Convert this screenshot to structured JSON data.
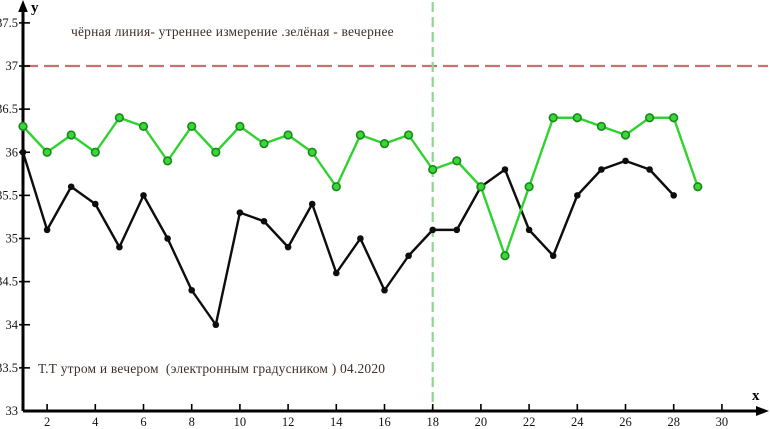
{
  "chart_data": {
    "type": "line",
    "legend_text": "чёрная линия- утреннее измерение .зелёная - вечернее",
    "caption_text": "Т.Т утром и вечером  (электронным градусником ) 04.2020",
    "x_axis_label": "x",
    "y_axis_label": "y",
    "xlim": [
      1,
      31
    ],
    "ylim": [
      33,
      37.8
    ],
    "grid": false,
    "legend_position": "none",
    "x_ticks": [
      2,
      4,
      6,
      8,
      10,
      12,
      14,
      16,
      18,
      20,
      22,
      24,
      26,
      28,
      30
    ],
    "y_ticks": [
      "37.5",
      "37",
      "36.5",
      "36",
      "35.5",
      "35",
      "34.5",
      "34",
      "33.5",
      "33"
    ],
    "series": [
      {
        "name": "утреннее измерение (чёрная линия)",
        "key": "morning",
        "color": "#0d0d0d",
        "marker_fill": "#0d0d0d",
        "marker_stroke": "#0d0d0d",
        "x": [
          1,
          2,
          3,
          4,
          5,
          6,
          7,
          8,
          9,
          10,
          11,
          12,
          13,
          14,
          15,
          16,
          17,
          18,
          19,
          20,
          21,
          22,
          23,
          24,
          25,
          26,
          27,
          28
        ],
        "values": [
          36.0,
          35.1,
          35.6,
          35.4,
          34.9,
          35.5,
          35.0,
          34.4,
          34.0,
          35.3,
          35.2,
          34.9,
          35.4,
          34.6,
          35.0,
          34.4,
          34.8,
          35.1,
          35.1,
          35.6,
          35.8,
          35.1,
          34.8,
          35.5,
          35.8,
          35.9,
          35.8,
          35.5
        ]
      },
      {
        "name": "вечернее измерение (зелёная линия)",
        "key": "evening",
        "color": "#2fd32f",
        "marker_fill": "#3cd63c",
        "marker_stroke": "#178a17",
        "x": [
          1,
          2,
          3,
          4,
          5,
          6,
          7,
          8,
          9,
          10,
          11,
          12,
          13,
          14,
          15,
          16,
          17,
          18,
          19,
          20,
          21,
          22,
          23,
          24,
          25,
          26,
          27,
          28,
          29
        ],
        "values": [
          36.3,
          36.0,
          36.2,
          36.0,
          36.4,
          36.3,
          35.9,
          36.3,
          36.0,
          36.3,
          36.1,
          36.2,
          36.0,
          35.6,
          36.2,
          36.1,
          36.2,
          35.8,
          35.9,
          35.6,
          34.8,
          35.6,
          36.4,
          36.4,
          36.3,
          36.2,
          36.4,
          36.4,
          35.6
        ]
      }
    ],
    "reference_lines": [
      {
        "orientation": "horizontal",
        "value": 37,
        "color": "#c47272",
        "style": "dashed"
      },
      {
        "orientation": "vertical",
        "value": 18,
        "color": "#8ed88e",
        "style": "dashed"
      }
    ],
    "axis_color": "#000000",
    "tick_label_color": "#141414"
  }
}
